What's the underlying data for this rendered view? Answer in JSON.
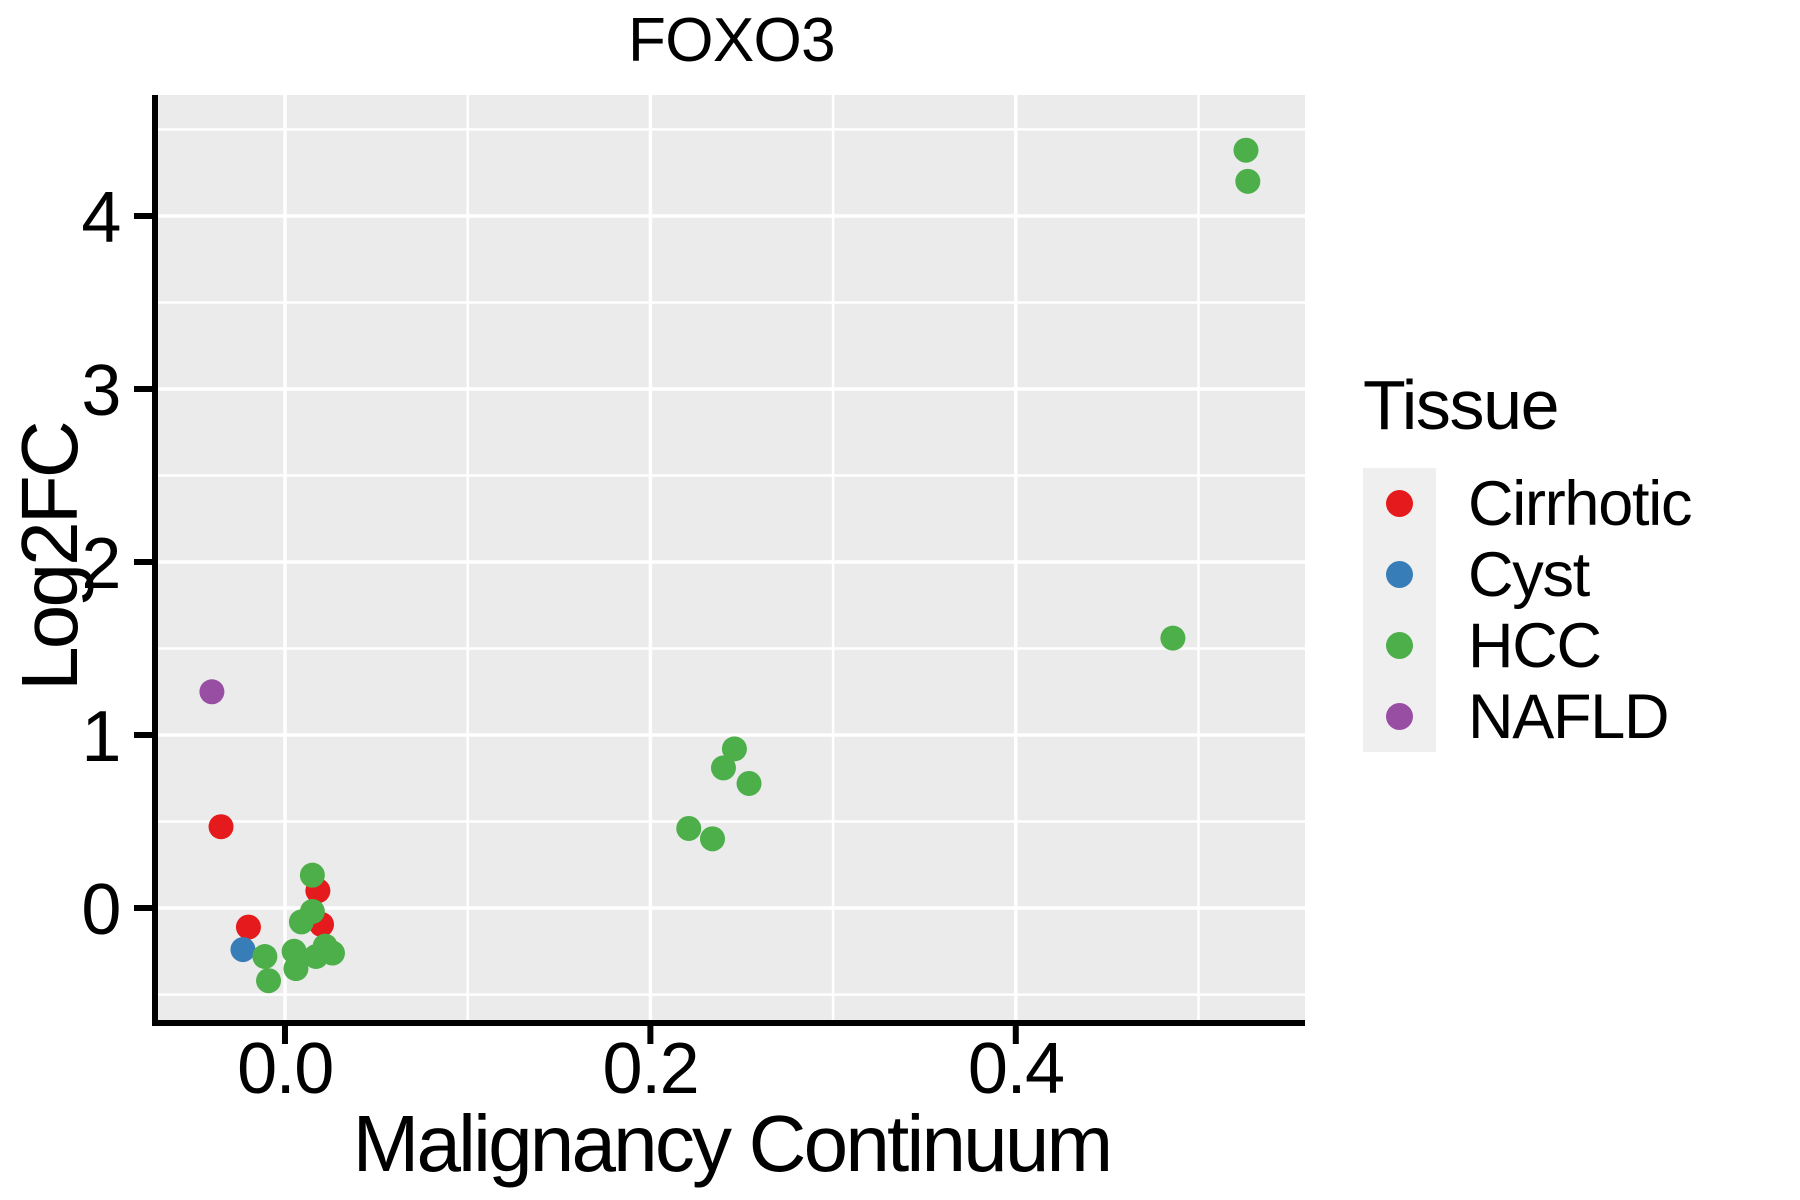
{
  "title": "FOXO3",
  "axes": {
    "x_title": "Malignancy Continuum",
    "y_title": "Log2FC"
  },
  "legend": {
    "title": "Tissue",
    "items": [
      {
        "label": "Cirrhotic",
        "color": "#E41A1C"
      },
      {
        "label": "Cyst",
        "color": "#377EB8"
      },
      {
        "label": "HCC",
        "color": "#4DAF4A"
      },
      {
        "label": "NAFLD",
        "color": "#984EA3"
      }
    ]
  },
  "chart_data": {
    "type": "scatter",
    "title": "FOXO3",
    "xlabel": "Malignancy Continuum",
    "ylabel": "Log2FC",
    "xlim": [
      -0.0695,
      0.5583
    ],
    "ylim": [
      -0.647,
      4.699
    ],
    "grid": "on",
    "legend_position": "right",
    "panel_background": "#EBEBEB",
    "grid_color": "#FFFFFF",
    "x_major_ticks": [
      0.0,
      0.2,
      0.4
    ],
    "x_tick_labels": [
      "0.0",
      "0.2",
      "0.4"
    ],
    "x_minor_ticks": [
      0.1,
      0.3,
      0.5
    ],
    "y_major_ticks": [
      0,
      1,
      2,
      3,
      4
    ],
    "y_tick_labels": [
      "0",
      "1",
      "2",
      "3",
      "4"
    ],
    "y_minor_ticks": [
      -0.5,
      0.5,
      1.5,
      2.5,
      3.5,
      4.5
    ],
    "point_radius_px": 12.5,
    "series": [
      {
        "name": "Cirrhotic",
        "color": "#E41A1C",
        "points": [
          [
            -0.035,
            0.47
          ],
          [
            -0.02,
            -0.11
          ],
          [
            0.018,
            0.1
          ],
          [
            0.02,
            -0.095
          ]
        ]
      },
      {
        "name": "Cyst",
        "color": "#377EB8",
        "points": [
          [
            -0.023,
            -0.24
          ]
        ]
      },
      {
        "name": "HCC",
        "color": "#4DAF4A",
        "points": [
          [
            -0.011,
            -0.28
          ],
          [
            -0.009,
            -0.42
          ],
          [
            0.005,
            -0.25
          ],
          [
            0.006,
            -0.35
          ],
          [
            0.009,
            -0.08
          ],
          [
            0.015,
            -0.02
          ],
          [
            0.015,
            0.19
          ],
          [
            0.017,
            -0.28
          ],
          [
            0.022,
            -0.22
          ],
          [
            0.026,
            -0.26
          ],
          [
            0.221,
            0.46
          ],
          [
            0.234,
            0.4
          ],
          [
            0.24,
            0.81
          ],
          [
            0.246,
            0.92
          ],
          [
            0.254,
            0.72
          ],
          [
            0.486,
            1.56
          ],
          [
            0.526,
            4.38
          ],
          [
            0.527,
            4.2
          ]
        ]
      },
      {
        "name": "NAFLD",
        "color": "#984EA3",
        "points": [
          [
            -0.04,
            1.25
          ]
        ]
      }
    ]
  }
}
